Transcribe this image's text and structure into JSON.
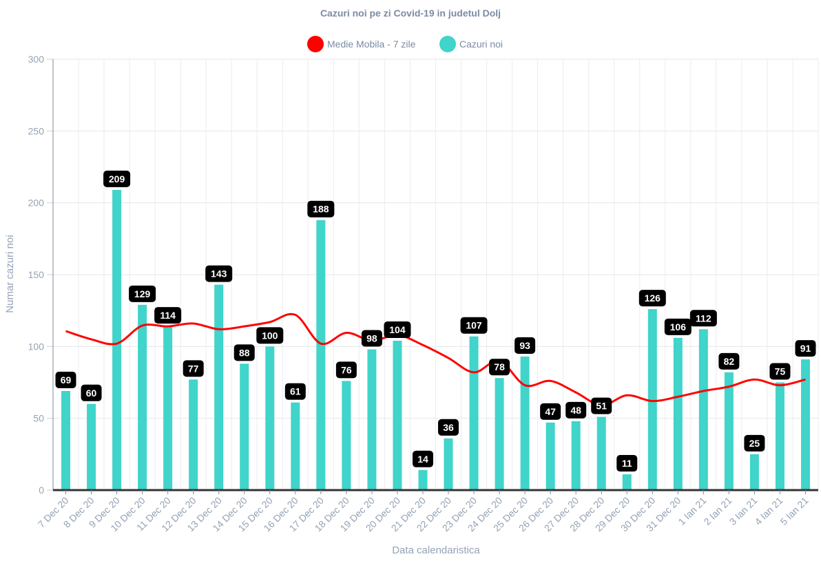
{
  "chart_data": {
    "type": "bar",
    "title": "Cazuri noi pe zi Covid-19 in judetul Dolj",
    "xlabel": "Data calendaristica",
    "ylabel": "Numar cazuri noi",
    "ylim": [
      0,
      300
    ],
    "yticks": [
      0,
      50,
      100,
      150,
      200,
      250,
      300
    ],
    "grid": true,
    "legend_position": "top",
    "categories": [
      "7 Dec 20",
      "8 Dec 20",
      "9 Dec 20",
      "10 Dec 20",
      "11 Dec 20",
      "12 Dec 20",
      "13 Dec 20",
      "14 Dec 20",
      "15 Dec 20",
      "16 Dec 20",
      "17 Dec 20",
      "18 Dec 20",
      "19 Dec 20",
      "20 Dec 20",
      "21 Dec 20",
      "22 Dec 20",
      "23 Dec 20",
      "24 Dec 20",
      "25 Dec 20",
      "26 Dec 20",
      "27 Dec 20",
      "28 Dec 20",
      "29 Dec 20",
      "30 Dec 20",
      "31 Dec 20",
      "1 Ian 21",
      "2 Ian 21",
      "3 Ian 21",
      "4 Ian 21",
      "5 Ian 21"
    ],
    "series": [
      {
        "name": "Medie Mobila - 7 zile",
        "type": "line",
        "color": "#ff0000",
        "values": [
          110.7,
          105.0,
          102.0,
          114.5,
          114.0,
          116.0,
          112.0,
          114.0,
          117.0,
          122.0,
          102.0,
          109.5,
          104.0,
          108.0,
          101.0,
          92.0,
          82.0,
          90.0,
          73.0,
          76.0,
          68.0,
          59.0,
          66.0,
          62.0,
          65.0,
          69.0,
          72.0,
          77.0,
          73.0,
          77.0
        ]
      },
      {
        "name": "Cazuri noi",
        "type": "bar",
        "color": "#40d4cb",
        "values": [
          69,
          60,
          209,
          129,
          114,
          77,
          143,
          88,
          100,
          61,
          188,
          76,
          98,
          104,
          14,
          36,
          107,
          78,
          93,
          47,
          48,
          51,
          11,
          126,
          106,
          112,
          82,
          25,
          75,
          91
        ]
      }
    ]
  }
}
